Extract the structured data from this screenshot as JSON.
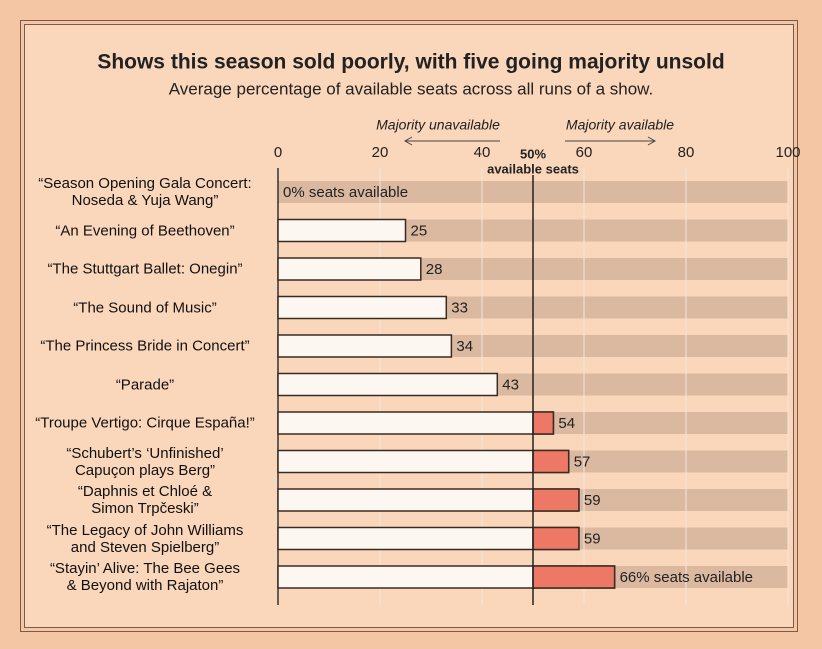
{
  "chart_data": {
    "type": "bar",
    "orientation": "horizontal",
    "title": "Shows this season sold poorly, with five going majority unsold",
    "subtitle": "Average percentage of available seats across all runs of a show.",
    "categories": [
      "“Season Opening Gala Concert:\nNoseda & Yuja Wang”",
      "“An Evening of Beethoven”",
      "“The Stuttgart Ballet: Onegin”",
      "“The Sound of Music”",
      "“The Princess Bride in Concert”",
      "“Parade”",
      "“Troupe Vertigo: Cirque España!”",
      "“Schubert’s ‘Unfinished’\nCapuçon plays Berg”",
      "“Daphnis et Chloé &\nSimon Trpčeski”",
      "“The Legacy of John Williams\nand Steven Spielberg”",
      "“Stayin’ Alive: The Bee Gees\n& Beyond with Rajaton”"
    ],
    "values": [
      0,
      25,
      28,
      33,
      34,
      43,
      54,
      57,
      59,
      59,
      66
    ],
    "value_labels": [
      "0% seats available",
      "25",
      "28",
      "33",
      "34",
      "43",
      "54",
      "57",
      "59",
      "59",
      "66% seats available"
    ],
    "color": "#fdf7f2",
    "highlight_color": "#ee7866",
    "band_color": "#dbb9a0",
    "xlim": [
      0,
      100
    ],
    "xticks": [
      0,
      20,
      40,
      60,
      80,
      100
    ],
    "grid": true,
    "midline": {
      "value": 50,
      "label": "50%"
    },
    "midline_caption": "available seats",
    "left_note": "Majority unavailable",
    "right_note": "Majority available"
  }
}
